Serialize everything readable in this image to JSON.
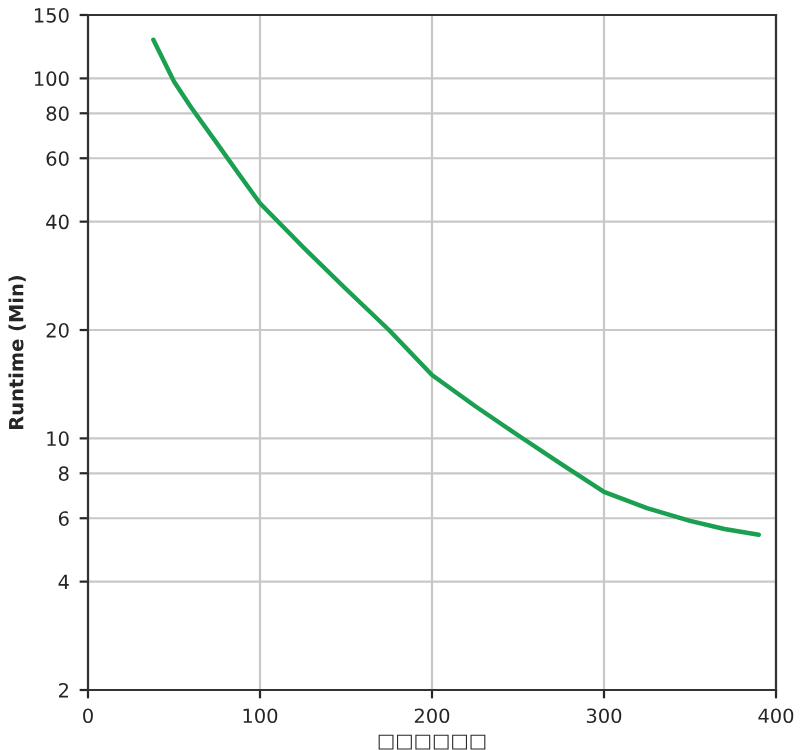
{
  "chart_data": {
    "type": "line",
    "xlabel": "□□□□□□",
    "ylabel": "Runtime (Min)",
    "series": [
      {
        "color": "#1aa050",
        "x": [
          38,
          50,
          60,
          75,
          88,
          100,
          125,
          150,
          175,
          200,
          225,
          250,
          275,
          300,
          325,
          350,
          370,
          390
        ],
        "values": [
          128,
          98,
          83,
          66,
          54,
          45,
          34,
          26,
          20,
          15,
          12.3,
          10.2,
          8.5,
          7.1,
          6.4,
          5.9,
          5.6,
          5.4
        ]
      }
    ],
    "xlim": [
      0,
      400
    ],
    "xticks": [
      0,
      100,
      200,
      300,
      400
    ],
    "ylim": [
      2,
      150
    ],
    "yticks": [
      2,
      4,
      6,
      8,
      10,
      20,
      40,
      60,
      80,
      100,
      150
    ],
    "log": "y",
    "grid": true,
    "marker": "none",
    "line_style": "solid"
  }
}
